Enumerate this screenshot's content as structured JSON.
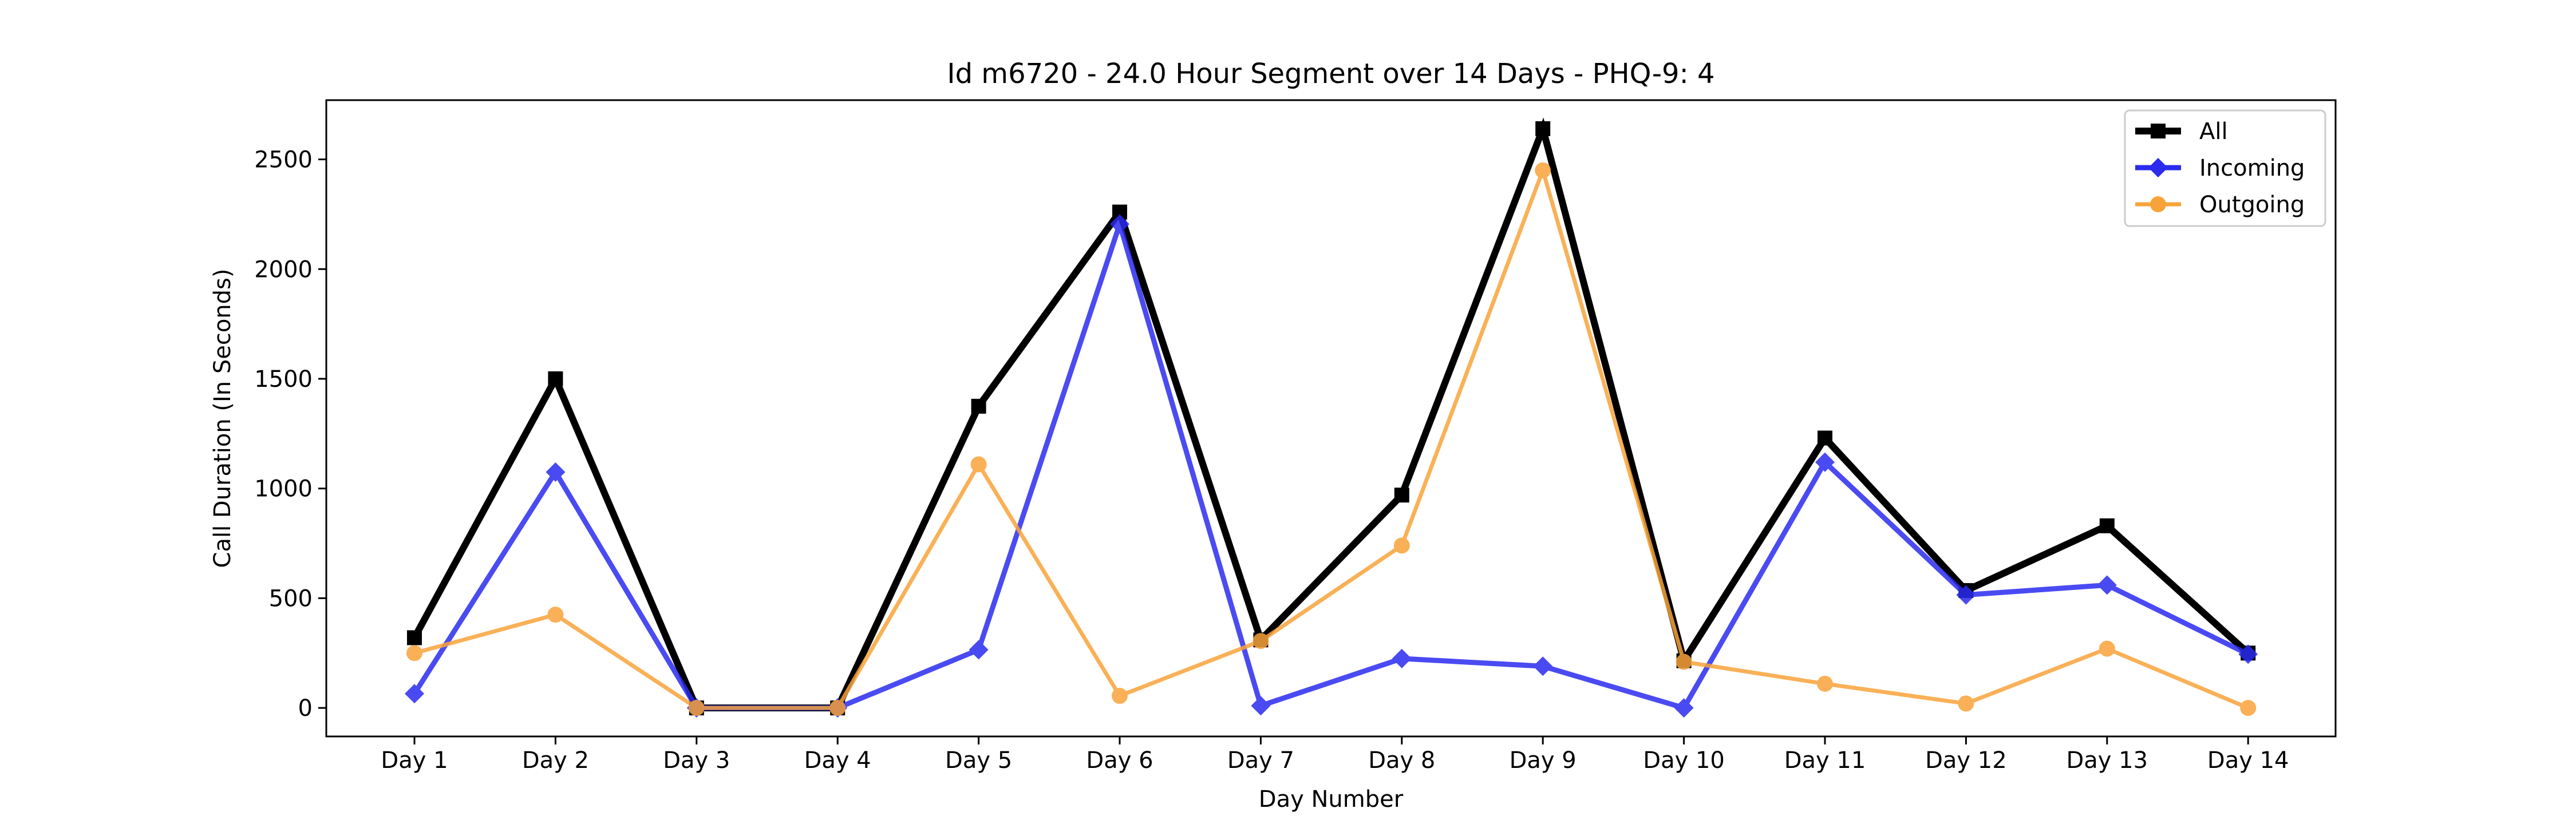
{
  "chart_data": {
    "type": "line",
    "title": "Id m6720 - 24.0 Hour Segment over 14 Days - PHQ-9: 4",
    "xlabel": "Day Number",
    "ylabel": "Call Duration (In Seconds)",
    "categories": [
      "Day 1",
      "Day 2",
      "Day 3",
      "Day 4",
      "Day 5",
      "Day 6",
      "Day 7",
      "Day 8",
      "Day 9",
      "Day 10",
      "Day 11",
      "Day 12",
      "Day 13",
      "Day 14"
    ],
    "yticks": [
      0,
      500,
      1000,
      1500,
      2000,
      2500
    ],
    "ylim": [
      -130,
      2770
    ],
    "grid": false,
    "legend_position": "top-right",
    "series": [
      {
        "name": "All",
        "color": "#000000",
        "marker": "square",
        "values": [
          320,
          1500,
          0,
          0,
          1375,
          2260,
          310,
          970,
          2640,
          215,
          1230,
          535,
          830,
          250
        ]
      },
      {
        "name": "Incoming",
        "color": "#2b2bf0",
        "marker": "diamond",
        "values": [
          65,
          1075,
          0,
          0,
          265,
          2205,
          10,
          225,
          190,
          0,
          1120,
          515,
          560,
          245
        ]
      },
      {
        "name": "Outgoing",
        "color": "#f8a33a",
        "marker": "circle",
        "values": [
          250,
          425,
          0,
          0,
          1110,
          55,
          305,
          740,
          2450,
          210,
          110,
          20,
          270,
          0
        ]
      }
    ]
  }
}
